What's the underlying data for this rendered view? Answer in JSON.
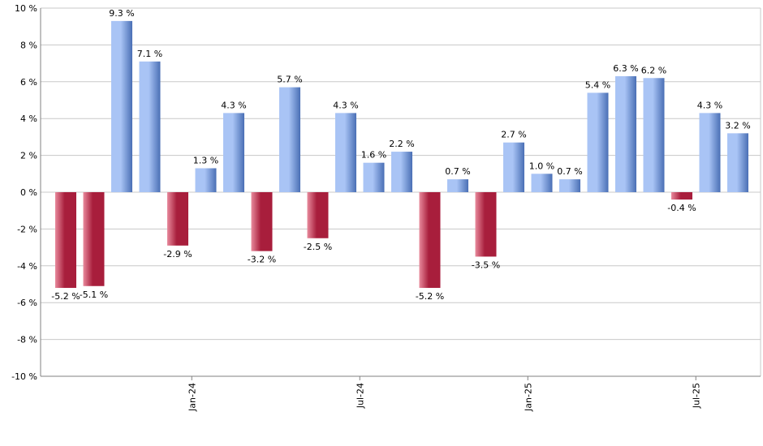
{
  "chart_data": {
    "type": "bar",
    "title": "",
    "xlabel": "",
    "ylabel": "",
    "ylim": [
      -10,
      10
    ],
    "ytick_step": 2,
    "unit_suffix": " %",
    "grid": true,
    "legend": "none",
    "values": [
      -5.2,
      -5.1,
      9.3,
      7.1,
      -2.9,
      1.3,
      4.3,
      -3.2,
      5.7,
      -2.5,
      4.3,
      1.6,
      2.2,
      -5.2,
      0.7,
      -3.5,
      2.7,
      1.0,
      0.7,
      5.4,
      6.3,
      6.2,
      -0.4,
      4.3,
      3.2
    ],
    "value_labels": [
      "-5.2 %",
      "-5.1 %",
      "9.3 %",
      "7.1 %",
      "-2.9 %",
      "1.3 %",
      "4.3 %",
      "-3.2 %",
      "5.7 %",
      "-2.5 %",
      "4.3 %",
      "1.6 %",
      "2.2 %",
      "-5.2 %",
      "0.7 %",
      "-3.5 %",
      "2.7 %",
      "1.0 %",
      "0.7 %",
      "5.4 %",
      "6.3 %",
      "6.2 %",
      "-0.4 %",
      "4.3 %",
      "3.2 %"
    ],
    "ytick_labels": [
      "10 %",
      "8 %",
      "6 %",
      "4 %",
      "2 %",
      "0 %",
      "-2 %",
      "-4 %",
      "-6 %",
      "-8 %",
      "-10 %"
    ],
    "x_ticks": [
      {
        "label": "Jan-24",
        "after_bar": 4
      },
      {
        "label": "Jul-24",
        "after_bar": 10
      },
      {
        "label": "Jan-25",
        "after_bar": 16
      },
      {
        "label": "Jul-25",
        "after_bar": 22
      }
    ],
    "colors": {
      "positive_light": "#a9c4f5",
      "positive_dark": "#4a6fb5",
      "negative_light": "#e88a9c",
      "negative_dark": "#a81e3c"
    }
  }
}
